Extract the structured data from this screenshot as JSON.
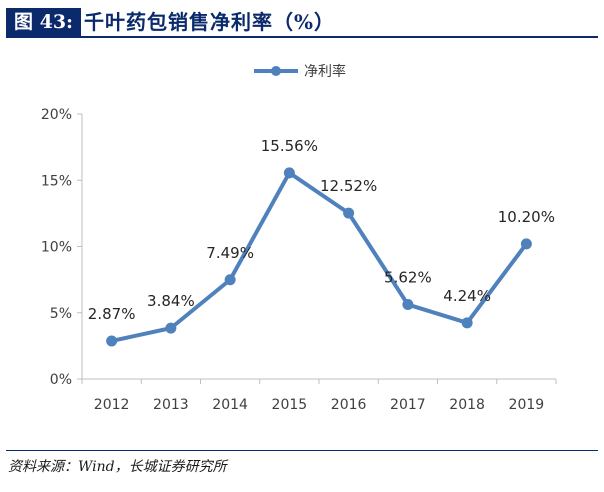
{
  "header": {
    "figure_label": "图 43:",
    "title": "千叶药包销售净利率（%）"
  },
  "source": "资料来源：Wind，长城证券研究所",
  "colors": {
    "line": "#4f81bd",
    "header": "#0b2a6b",
    "axis": "#bfbfbf"
  },
  "chart_data": {
    "type": "line",
    "title": "千叶药包销售净利率（%）",
    "categories": [
      "2012",
      "2013",
      "2014",
      "2015",
      "2016",
      "2017",
      "2018",
      "2019"
    ],
    "series": [
      {
        "name": "净利率",
        "values": [
          2.87,
          3.84,
          7.49,
          15.56,
          12.52,
          5.62,
          4.24,
          10.2
        ],
        "labels": [
          "2.87%",
          "3.84%",
          "7.49%",
          "15.56%",
          "12.52%",
          "5.62%",
          "4.24%",
          "10.20%"
        ]
      }
    ],
    "yticks": [
      "0%",
      "5%",
      "10%",
      "15%",
      "20%"
    ],
    "ylim": [
      0,
      20
    ],
    "xlabel": "",
    "ylabel": "",
    "legend": "top-center",
    "grid": false
  }
}
